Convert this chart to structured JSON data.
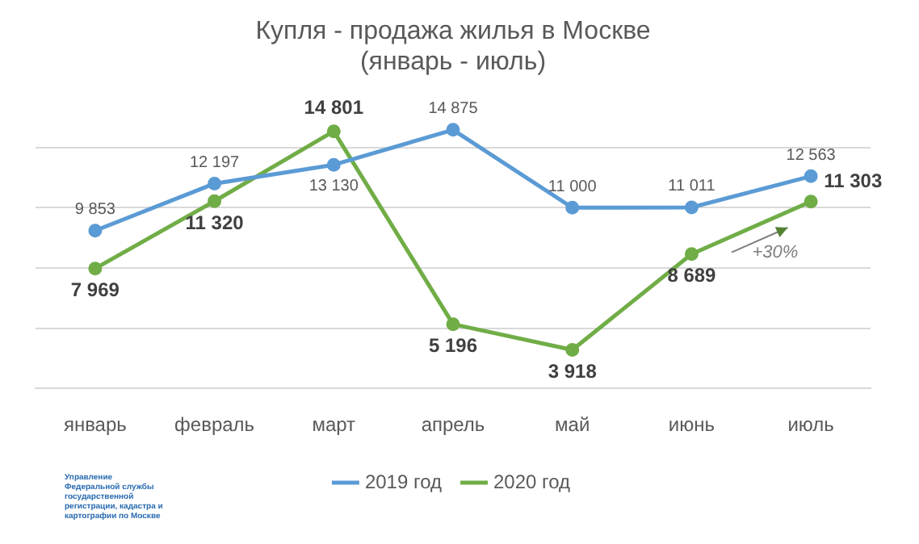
{
  "chart_data": {
    "type": "line",
    "title": "Купля - продажа жилья в Москве\n(январь - июль)",
    "categories": [
      "январь",
      "февраль",
      "март",
      "апрель",
      "май",
      "июнь",
      "июль"
    ],
    "series": [
      {
        "name": "2019 год",
        "color": "#5b9bd5",
        "values": [
          9853,
          12197,
          13130,
          14875,
          11000,
          11011,
          12563
        ]
      },
      {
        "name": "2020 год",
        "color": "#70ad47",
        "values": [
          7969,
          11320,
          14801,
          5196,
          3918,
          8689,
          11303
        ]
      }
    ],
    "yticks": [
      {
        "value": 2000,
        "label": null
      },
      {
        "value": 5000,
        "label": null
      },
      {
        "value": 8000,
        "label": null
      },
      {
        "value": 11000,
        "label": null
      },
      {
        "value": 14000,
        "label": null
      }
    ],
    "tick_labels": "x",
    "grid": "y",
    "legend": "bottom",
    "marker": "circle",
    "data_labels": true,
    "annotations": [
      "+30%",
      "Управление Федеральной службы государственной регистрации, кадастра и картографии по Москве"
    ]
  }
}
